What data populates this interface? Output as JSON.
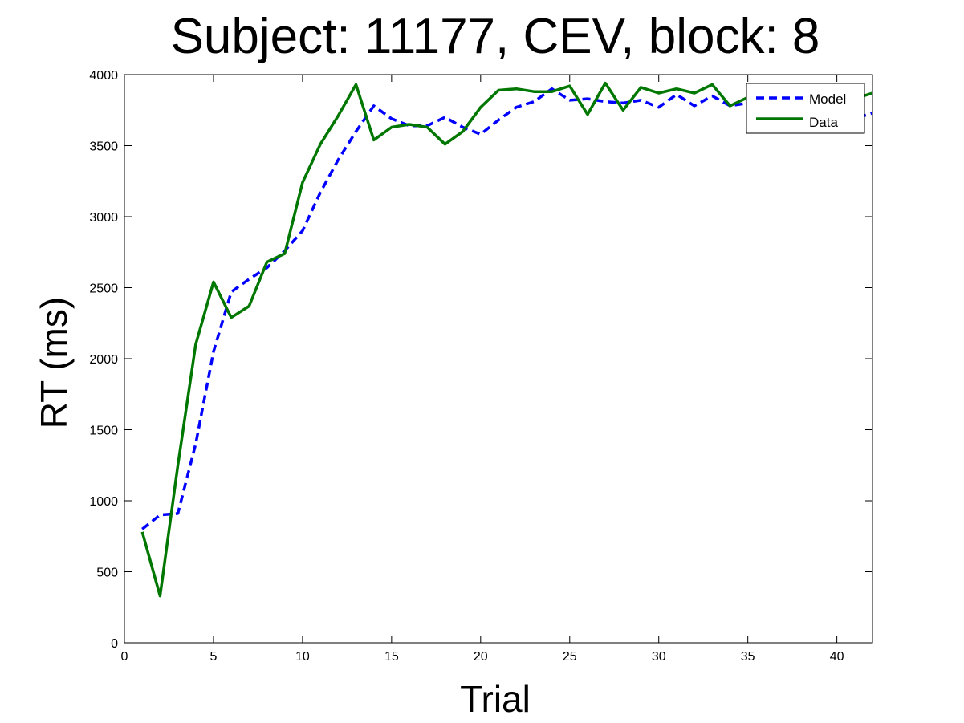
{
  "chart_data": {
    "type": "line",
    "title": "Subject: 11177, CEV, block: 8",
    "xlabel": "Trial",
    "ylabel": "RT (ms)",
    "xlim": [
      0,
      42
    ],
    "ylim": [
      0,
      4000
    ],
    "xticks": [
      0,
      5,
      10,
      15,
      20,
      25,
      30,
      35,
      40
    ],
    "yticks": [
      0,
      500,
      1000,
      1500,
      2000,
      2500,
      3000,
      3500,
      4000
    ],
    "grid": false,
    "legend_position": "top-right",
    "series": [
      {
        "name": "Model",
        "color": "#0000ff",
        "style": "dashed",
        "x": [
          1,
          2,
          3,
          4,
          5,
          6,
          7,
          8,
          9,
          10,
          11,
          12,
          13,
          14,
          15,
          16,
          17,
          18,
          19,
          20,
          21,
          22,
          23,
          24,
          25,
          26,
          27,
          28,
          29,
          30,
          31,
          32,
          33,
          34,
          35,
          36,
          37,
          38,
          39,
          40,
          41,
          42
        ],
        "values": [
          800,
          900,
          910,
          1400,
          2050,
          2470,
          2560,
          2640,
          2760,
          2900,
          3170,
          3400,
          3600,
          3780,
          3690,
          3640,
          3640,
          3700,
          3630,
          3580,
          3680,
          3770,
          3810,
          3900,
          3820,
          3830,
          3810,
          3800,
          3820,
          3770,
          3860,
          3780,
          3850,
          3780,
          3800,
          3790,
          3800,
          3790,
          3770,
          3780,
          3690,
          3730
        ]
      },
      {
        "name": "Data",
        "color": "#007700",
        "style": "solid",
        "x": [
          1,
          2,
          3,
          4,
          5,
          6,
          7,
          8,
          9,
          10,
          11,
          12,
          13,
          14,
          15,
          16,
          17,
          18,
          19,
          20,
          21,
          22,
          23,
          24,
          25,
          26,
          27,
          28,
          29,
          30,
          31,
          32,
          33,
          34,
          35,
          36,
          37,
          38,
          39,
          40,
          41,
          42
        ],
        "values": [
          780,
          330,
          1250,
          2100,
          2540,
          2290,
          2370,
          2680,
          2740,
          3240,
          3510,
          3710,
          3930,
          3540,
          3630,
          3650,
          3630,
          3510,
          3600,
          3770,
          3890,
          3900,
          3880,
          3880,
          3920,
          3720,
          3940,
          3750,
          3910,
          3870,
          3900,
          3870,
          3930,
          3780,
          3840,
          3850,
          3870,
          3860,
          3860,
          3850,
          3830,
          3870
        ]
      }
    ]
  }
}
